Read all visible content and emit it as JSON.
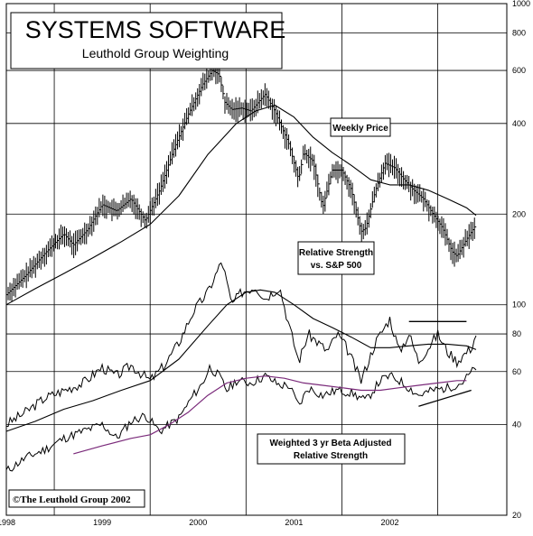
{
  "chart_data": {
    "type": "line",
    "title": "SYSTEMS SOFTWARE",
    "subtitle": "Leuthold Group Weighting",
    "copyright": "©The Leuthold Group 2002",
    "y_scale": "log",
    "ylim": [
      20,
      1000
    ],
    "y_ticks": [
      20,
      40,
      60,
      80,
      100,
      200,
      400,
      600,
      800,
      1000
    ],
    "x_ticks": [
      "1998",
      "1999",
      "2000",
      "2001",
      "2002"
    ],
    "xlim": [
      1997.5,
      2002.72
    ],
    "grid": true,
    "annotations": [
      {
        "text": "Weekly Price",
        "lines": [
          "Weekly Price"
        ]
      },
      {
        "text": "Relative Strength vs. S&P 500",
        "lines": [
          "Relative Strength",
          "vs. S&P 500"
        ]
      },
      {
        "text": "Weighted 3 yr Beta Adjusted Relative Strength",
        "lines": [
          "Weighted 3 yr Beta Adjusted",
          "Relative Strength"
        ]
      }
    ],
    "series": [
      {
        "key": "price",
        "color": "#000000",
        "style": "ohlc-bars",
        "x": [
          1997.5,
          1997.7,
          1997.9,
          1998.1,
          1998.2,
          1998.35,
          1998.5,
          1998.65,
          1998.8,
          1998.95,
          1999.1,
          1999.25,
          1999.4,
          1999.55,
          1999.65,
          1999.72,
          1999.78,
          1999.85,
          1999.95,
          2000.05,
          2000.15,
          2000.2,
          2000.3,
          2000.45,
          2000.55,
          2000.6,
          2000.7,
          2000.8,
          2000.9,
          2001.0,
          2001.1,
          2001.2,
          2001.25,
          2001.35,
          2001.45,
          2001.55,
          2001.65,
          2001.75,
          2001.85,
          2001.95,
          2002.05,
          2002.15,
          2002.2,
          2002.3,
          2002.4
        ],
        "values": [
          108,
          125,
          148,
          172,
          158,
          178,
          215,
          205,
          225,
          190,
          240,
          330,
          430,
          540,
          600,
          580,
          470,
          445,
          450,
          440,
          480,
          500,
          440,
          340,
          260,
          320,
          300,
          210,
          280,
          280,
          240,
          175,
          180,
          240,
          295,
          285,
          260,
          240,
          225,
          200,
          180,
          150,
          145,
          165,
          185
        ]
      },
      {
        "key": "price_ma",
        "color": "#000000",
        "x": [
          1997.5,
          1997.8,
          1998.1,
          1998.4,
          1998.7,
          1999.0,
          1999.3,
          1999.6,
          1999.9,
          2000.1,
          2000.3,
          2000.5,
          2000.7,
          2000.9,
          2001.1,
          2001.3,
          2001.5,
          2001.7,
          2001.9,
          2002.1,
          2002.3,
          2002.4
        ],
        "values": [
          100,
          113,
          127,
          143,
          162,
          185,
          230,
          315,
          400,
          440,
          460,
          420,
          360,
          320,
          290,
          260,
          250,
          250,
          240,
          225,
          210,
          198
        ]
      },
      {
        "key": "rs",
        "color": "#000000",
        "x": [
          1997.5,
          1997.7,
          1997.9,
          1998.1,
          1998.3,
          1998.5,
          1998.65,
          1998.8,
          1999.0,
          1999.15,
          1999.3,
          1999.45,
          1999.6,
          1999.68,
          1999.75,
          1999.85,
          1999.95,
          2000.1,
          2000.2,
          2000.35,
          2000.45,
          2000.55,
          2000.65,
          2000.75,
          2000.85,
          2000.95,
          2001.05,
          2001.2,
          2001.35,
          2001.5,
          2001.6,
          2001.7,
          2001.8,
          2001.9,
          2002.0,
          2002.1,
          2002.2,
          2002.35,
          2002.4
        ],
        "values": [
          40,
          44,
          49,
          52,
          55,
          62,
          58,
          63,
          56,
          63,
          75,
          95,
          110,
          125,
          140,
          100,
          110,
          115,
          105,
          115,
          85,
          65,
          80,
          75,
          70,
          80,
          72,
          56,
          75,
          90,
          70,
          80,
          65,
          72,
          80,
          70,
          65,
          72,
          80
        ]
      },
      {
        "key": "rs_ma",
        "color": "#000000",
        "x": [
          1997.5,
          1997.8,
          1998.1,
          1998.4,
          1998.7,
          1999.0,
          1999.3,
          1999.6,
          1999.8,
          2000.0,
          2000.15,
          2000.3,
          2000.5,
          2000.7,
          2000.9,
          2001.1,
          2001.3,
          2001.5,
          2001.7,
          2001.9,
          2002.1,
          2002.3,
          2002.4
        ],
        "values": [
          38,
          41,
          45,
          48,
          52,
          56,
          66,
          85,
          100,
          110,
          112,
          110,
          100,
          90,
          84,
          78,
          72,
          72,
          73,
          74,
          74,
          73,
          71
        ]
      },
      {
        "key": "rs_trend",
        "color": "#000000",
        "x": [
          2001.7,
          2002.3
        ],
        "values": [
          88,
          88
        ]
      },
      {
        "key": "beta_rs",
        "color": "#000000",
        "x": [
          1997.5,
          1997.7,
          1997.9,
          1998.1,
          1998.3,
          1998.5,
          1998.65,
          1998.8,
          1998.95,
          1999.1,
          1999.3,
          1999.45,
          1999.55,
          1999.62,
          1999.72,
          1999.8,
          1999.9,
          2000.05,
          2000.2,
          2000.35,
          2000.45,
          2000.55,
          2000.65,
          2000.8,
          2000.95,
          2001.1,
          2001.25,
          2001.4,
          2001.5,
          2001.6,
          2001.7,
          2001.8,
          2001.95,
          2002.1,
          2002.25,
          2002.4
        ],
        "values": [
          28,
          31,
          33,
          36,
          38,
          40,
          36,
          41,
          43,
          38,
          42,
          50,
          55,
          62,
          58,
          52,
          56,
          55,
          58,
          54,
          54,
          46,
          53,
          50,
          52,
          51,
          48,
          56,
          58,
          56,
          53,
          50,
          52,
          53,
          55,
          62
        ]
      },
      {
        "key": "beta_rs_smooth",
        "color": "#7a2a7a",
        "x": [
          1998.2,
          1998.5,
          1998.8,
          1999.0,
          1999.2,
          1999.4,
          1999.6,
          1999.8,
          2000.0,
          2000.2,
          2000.4,
          2000.6,
          2000.8,
          2001.0,
          2001.2,
          2001.4,
          2001.6,
          2001.8,
          2002.0,
          2002.2,
          2002.3
        ],
        "values": [
          32,
          34,
          36,
          37,
          40,
          44,
          50,
          55,
          57,
          58,
          57,
          55,
          54,
          53,
          52,
          52,
          53,
          54,
          55,
          56,
          56
        ]
      },
      {
        "key": "beta_trend",
        "color": "#000000",
        "x": [
          1997.5,
          2002.35
        ],
        "values": [
          0,
          0
        ]
      },
      {
        "key": "beta_trend_line",
        "color": "#000000",
        "x": [
          2001.8,
          2002.35
        ],
        "values": [
          46,
          52
        ]
      }
    ]
  }
}
